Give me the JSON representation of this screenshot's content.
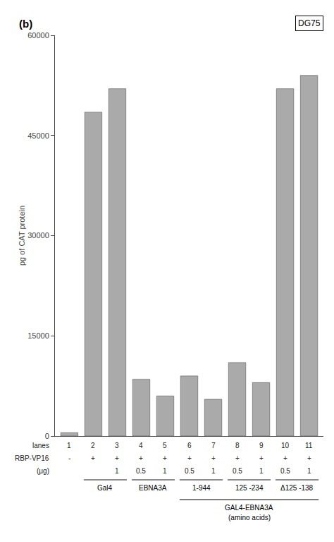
{
  "chart_data": {
    "type": "bar",
    "title": "DG75",
    "ylabel": "pg of CAT protein",
    "xlabel": "lanes",
    "categories": [
      "1",
      "2",
      "3",
      "4",
      "5",
      "6",
      "7",
      "8",
      "9",
      "10",
      "11"
    ],
    "values": [
      500,
      48500,
      52000,
      8500,
      6000,
      9000,
      5500,
      11000,
      8000,
      52000,
      54000
    ],
    "color": "#aaaaaa",
    "ylim": [
      0,
      60000
    ],
    "yticks": [
      0,
      15000,
      30000,
      45000,
      60000
    ],
    "grid": false,
    "tick_labels": "y",
    "annotations": [
      {
        "text": "(b)"
      },
      {
        "text": "RBP-VP16",
        "row": [
          "-",
          "+",
          "+",
          "+",
          "+",
          "+",
          "+",
          "+",
          "+",
          "+",
          "+"
        ]
      },
      {
        "text": "(μg)",
        "row": [
          null,
          null,
          "1",
          "0.5",
          "1",
          "0.5",
          "1",
          "0.5",
          "1",
          "0.5",
          "1"
        ]
      },
      {
        "text": "Gal4",
        "span": [
          "2",
          "3"
        ]
      },
      {
        "text": "EBNA3A",
        "span": [
          "4",
          "5"
        ]
      },
      {
        "text": "1-944",
        "span": [
          "6",
          "7"
        ]
      },
      {
        "text": "125 -234",
        "span": [
          "8",
          "9"
        ]
      },
      {
        "text": "Δ125 -138",
        "span": [
          "10",
          "11"
        ]
      },
      {
        "text": [
          "GAL4-EBNA3A",
          "(amino acids)"
        ],
        "span": [
          "6",
          "11"
        ]
      }
    ]
  }
}
